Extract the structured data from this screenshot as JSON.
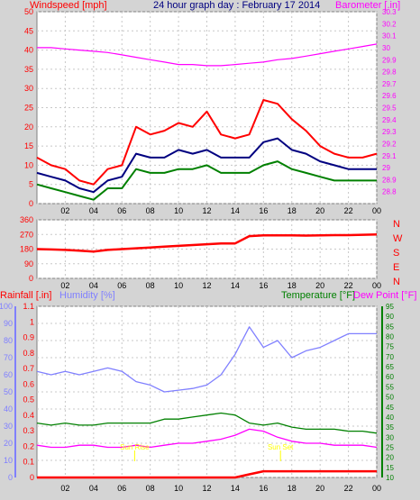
{
  "title": "24 hour graph day : February 17 2014",
  "chart_data": [
    {
      "type": "line",
      "panel": "wind-barometer",
      "left_label": "Windspeed [mph]",
      "right_label": "Barometer [.in]",
      "x_ticks": [
        "02",
        "04",
        "06",
        "08",
        "10",
        "12",
        "14",
        "16",
        "18",
        "20",
        "22",
        "00"
      ],
      "y_left_ticks": [
        "0",
        "5",
        "10",
        "15",
        "20",
        "25",
        "30",
        "35",
        "40",
        "45",
        "50"
      ],
      "ylim_left": [
        0,
        50
      ],
      "y_right_ticks": [
        "28.8",
        "28.9",
        "29",
        "29.1",
        "29.2",
        "29.3",
        "29.4",
        "29.5",
        "29.6",
        "29.7",
        "29.8",
        "29.9",
        "30",
        "30.1",
        "30.2",
        "30.3"
      ],
      "ylim_right": [
        28.7,
        30.3
      ],
      "x_hours": [
        0,
        1,
        2,
        3,
        4,
        5,
        6,
        7,
        8,
        9,
        10,
        11,
        12,
        13,
        14,
        15,
        16,
        17,
        18,
        19,
        20,
        21,
        22,
        23,
        24
      ],
      "series": [
        {
          "axis": "left",
          "color": "#ff0000",
          "values": [
            12,
            10,
            9,
            6,
            5,
            9,
            10,
            20,
            18,
            19,
            21,
            20,
            24,
            18,
            17,
            18,
            27,
            26,
            22,
            19,
            15,
            13,
            12,
            12,
            13
          ]
        },
        {
          "axis": "left",
          "color": "#000080",
          "values": [
            8,
            7,
            6,
            4,
            3,
            6,
            7,
            13,
            12,
            12,
            14,
            13,
            14,
            12,
            12,
            12,
            16,
            17,
            14,
            13,
            11,
            10,
            9,
            9,
            9
          ]
        },
        {
          "axis": "left",
          "color": "#008000",
          "values": [
            5,
            4,
            3,
            2,
            1,
            4,
            4,
            9,
            8,
            8,
            9,
            9,
            10,
            8,
            8,
            8,
            10,
            11,
            9,
            8,
            7,
            6,
            6,
            6,
            6
          ]
        },
        {
          "axis": "right",
          "color": "#ff00ff",
          "values": [
            30.0,
            30.0,
            29.99,
            29.98,
            29.97,
            29.96,
            29.94,
            29.92,
            29.9,
            29.88,
            29.86,
            29.86,
            29.85,
            29.85,
            29.86,
            29.87,
            29.88,
            29.9,
            29.91,
            29.93,
            29.95,
            29.97,
            29.99,
            30.01,
            30.03
          ]
        }
      ]
    },
    {
      "type": "line",
      "panel": "wind-direction",
      "x_ticks": [
        "02",
        "04",
        "06",
        "08",
        "10",
        "12",
        "14",
        "16",
        "18",
        "20",
        "22",
        "00"
      ],
      "y_left_ticks": [
        "0",
        "90",
        "180",
        "270",
        "360"
      ],
      "ylim_left": [
        0,
        360
      ],
      "y_right_labels": [
        "N",
        "W",
        "S",
        "E",
        "N"
      ],
      "x_hours": [
        0,
        1,
        2,
        3,
        4,
        5,
        6,
        7,
        8,
        9,
        10,
        11,
        12,
        13,
        14,
        15,
        16,
        17,
        18,
        19,
        20,
        21,
        22,
        23,
        24
      ],
      "series": [
        {
          "color": "#ff0000",
          "values": [
            180,
            178,
            175,
            170,
            165,
            175,
            180,
            185,
            190,
            195,
            200,
            205,
            210,
            215,
            215,
            260,
            265,
            265,
            265,
            263,
            265,
            266,
            266,
            268,
            270
          ]
        }
      ]
    },
    {
      "type": "line",
      "panel": "rain-humidity-temp",
      "left_label": "Rainfall [.in]",
      "humidity_label": "Humidity [%]",
      "temp_label": "Temperature [°F]",
      "dew_label": "Dew Point [°F]",
      "x_ticks": [
        "02",
        "04",
        "06",
        "08",
        "10",
        "12",
        "14",
        "16",
        "18",
        "20",
        "22",
        "00"
      ],
      "y_hum_ticks": [
        "0",
        "10",
        "20",
        "30",
        "40",
        "50",
        "60",
        "70",
        "80",
        "90",
        "100"
      ],
      "ylim_hum": [
        0,
        100
      ],
      "y_rain_ticks": [
        "0",
        "0.1",
        "0.2",
        "0.3",
        "0.4",
        "0.5",
        "0.6",
        "0.7",
        "0.8",
        "0.9",
        "1",
        "1.1"
      ],
      "ylim_rain": [
        0,
        1.1
      ],
      "y_temp_ticks": [
        "10",
        "15",
        "20",
        "25",
        "30",
        "35",
        "40",
        "45",
        "50",
        "55",
        "60",
        "65",
        "70",
        "75",
        "80",
        "85",
        "90",
        "95"
      ],
      "ylim_temp": [
        10,
        95
      ],
      "annotations": [
        "Sun Rise",
        "Sun Set"
      ],
      "x_hours": [
        0,
        1,
        2,
        3,
        4,
        5,
        6,
        7,
        8,
        9,
        10,
        11,
        12,
        13,
        14,
        15,
        16,
        17,
        18,
        19,
        20,
        21,
        22,
        23,
        24
      ],
      "series": [
        {
          "axis": "hum",
          "color": "#8080ff",
          "values": [
            62,
            60,
            62,
            60,
            62,
            64,
            62,
            56,
            54,
            50,
            51,
            52,
            54,
            60,
            72,
            88,
            76,
            80,
            70,
            74,
            76,
            80,
            84,
            84,
            84
          ]
        },
        {
          "axis": "temp",
          "color": "#008000",
          "values": [
            37,
            36,
            37,
            36,
            36,
            37,
            37,
            37,
            37,
            39,
            39,
            40,
            41,
            42,
            41,
            37,
            36,
            37,
            35,
            34,
            34,
            34,
            33,
            33,
            32
          ]
        },
        {
          "axis": "temp",
          "color": "#ff00ff",
          "values": [
            26,
            25,
            25,
            26,
            26,
            25,
            25,
            26,
            25,
            26,
            27,
            27,
            28,
            29,
            31,
            34,
            33,
            30,
            28,
            27,
            27,
            26,
            26,
            26,
            25
          ]
        },
        {
          "axis": "rain",
          "color": "#ff0000",
          "values": [
            0,
            0,
            0,
            0,
            0,
            0,
            0,
            0,
            0,
            0,
            0,
            0,
            0,
            0,
            0,
            0.02,
            0.04,
            0.04,
            0.04,
            0.04,
            0.04,
            0.04,
            0.04,
            0.04,
            0.04
          ]
        }
      ]
    }
  ]
}
